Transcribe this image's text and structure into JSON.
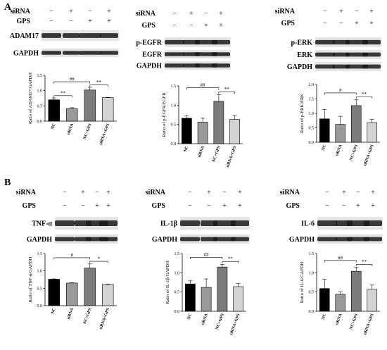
{
  "panel_labels": [
    "A",
    "B"
  ],
  "sign_minus": "−",
  "sign_plus": "+",
  "row_labels": {
    "sirna": "siRNA",
    "gps": "GPS",
    "gapdh": "GAPDH"
  },
  "conditions": {
    "sirna": [
      "−",
      "+",
      "−",
      "+"
    ],
    "gps": [
      "−",
      "−",
      "+",
      "+"
    ]
  },
  "colors": {
    "bar_fills": [
      "#000000",
      "#9a9a9a",
      "#7c7c7c",
      "#d3d3d3"
    ],
    "blot_band": "#1a1a1a",
    "blot_bg": "#e4e4e4"
  },
  "chart_data": [
    {
      "type": "bar",
      "panel": "A",
      "blot_targets": [
        "ADAM17"
      ],
      "categories": [
        "NC",
        "siRNA",
        "NC+GPS",
        "siRNA+GPS"
      ],
      "values": [
        0.7,
        0.41,
        1.02,
        0.77
      ],
      "errors": [
        0.06,
        0.03,
        0.09,
        0.01
      ],
      "ylabel": "Ratio of ADAM17/GAPDH",
      "ylim": [
        0,
        1.5
      ],
      "yticks": [
        "0.0",
        "0.5",
        "1.0",
        "1.5"
      ],
      "brackets": [
        {
          "from": "NC",
          "to": "siRNA",
          "label": "**"
        },
        {
          "from": "NC",
          "to": "NC+GPS",
          "label": "##"
        },
        {
          "from": "NC+GPS",
          "to": "siRNA+GPS",
          "label": "**"
        }
      ]
    },
    {
      "type": "bar",
      "panel": "A",
      "blot_targets": [
        "p-EGFR",
        "EGFR"
      ],
      "categories": [
        "NC",
        "siRNA",
        "NC+GPS",
        "siRNA+GPS"
      ],
      "values": [
        0.66,
        0.56,
        1.1,
        0.63
      ],
      "errors": [
        0.06,
        0.1,
        0.17,
        0.1
      ],
      "ylabel": "Ratio of p-EGFR/EGFR",
      "ylim": [
        0,
        1.5
      ],
      "yticks": [
        "0.0",
        "0.5",
        "1.0",
        "1.5"
      ],
      "brackets": [
        {
          "from": "NC",
          "to": "NC+GPS",
          "label": "##"
        },
        {
          "from": "NC+GPS",
          "to": "siRNA+GPS",
          "label": "**"
        }
      ]
    },
    {
      "type": "bar",
      "panel": "A",
      "blot_targets": [
        "p-ERK",
        "ERK"
      ],
      "categories": [
        "NC",
        "siRNA",
        "NC+GPS",
        "siRNA+GPS"
      ],
      "values": [
        0.81,
        0.62,
        1.27,
        0.68
      ],
      "errors": [
        0.33,
        0.28,
        0.2,
        0.12
      ],
      "ylabel": "Ratio of p-ERK/ERK",
      "ylim": [
        0,
        2.0
      ],
      "yticks": [
        "0.0",
        "0.5",
        "1.0",
        "1.5",
        "2.0"
      ],
      "brackets": [
        {
          "from": "NC",
          "to": "NC+GPS",
          "label": "#"
        },
        {
          "from": "NC+GPS",
          "to": "siRNA+GPS",
          "label": "**"
        }
      ]
    },
    {
      "type": "bar",
      "panel": "B",
      "blot_targets": [
        "TNF-α"
      ],
      "categories": [
        "NC",
        "siRNA",
        "NC+GPS",
        "siRNA+GPS"
      ],
      "values": [
        0.76,
        0.65,
        1.08,
        0.61
      ],
      "errors": [
        0.01,
        0.01,
        0.12,
        0.01
      ],
      "ylabel": "Ratio of TNF-α/GAPDH",
      "ylim": [
        0,
        1.5
      ],
      "yticks": [
        "0.0",
        "0.5",
        "1.0",
        "1.5"
      ],
      "brackets": [
        {
          "from": "NC",
          "to": "NC+GPS",
          "label": "#"
        },
        {
          "from": "NC+GPS",
          "to": "siRNA+GPS",
          "label": "*"
        }
      ]
    },
    {
      "type": "bar",
      "panel": "B",
      "blot_targets": [
        "IL-1β"
      ],
      "categories": [
        "NC",
        "siRNA",
        "NC+GPS",
        "siRNA+GPS"
      ],
      "values": [
        0.71,
        0.62,
        1.15,
        0.64
      ],
      "errors": [
        0.08,
        0.22,
        0.07,
        0.08
      ],
      "ylabel": "Ratio of IL-1β/GAPDH",
      "ylim": [
        0,
        1.5
      ],
      "yticks": [
        "0.0",
        "0.5",
        "1.0",
        "1.5"
      ],
      "brackets": [
        {
          "from": "NC",
          "to": "NC+GPS",
          "label": "##"
        },
        {
          "from": "NC+GPS",
          "to": "siRNA+GPS",
          "label": "**"
        }
      ]
    },
    {
      "type": "bar",
      "panel": "B",
      "blot_targets": [
        "IL-6"
      ],
      "categories": [
        "NC",
        "siRNA",
        "NC+GPS",
        "siRNA+GPS"
      ],
      "values": [
        0.59,
        0.44,
        1.04,
        0.57
      ],
      "errors": [
        0.24,
        0.06,
        0.1,
        0.11
      ],
      "ylabel": "Ratio of IL-6/GAPDH",
      "ylim": [
        0,
        1.5
      ],
      "yticks": [
        "0.0",
        "0.5",
        "1.0",
        "1.5"
      ],
      "brackets": [
        {
          "from": "NC",
          "to": "NC+GPS",
          "label": "##"
        },
        {
          "from": "NC+GPS",
          "to": "siRNA+GPS",
          "label": "**"
        }
      ]
    }
  ]
}
